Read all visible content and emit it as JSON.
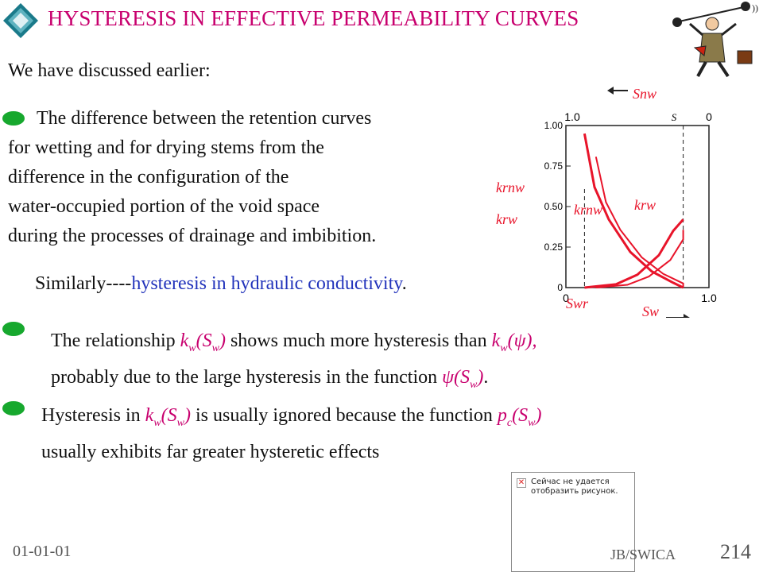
{
  "slide": {
    "title": "HYSTERESIS IN EFFECTIVE PERMEABILITY CURVES",
    "intro": "We have discussed earlier:",
    "para1": {
      "lines": [
        "The difference between the retention curves",
        "for wetting and for drying stems from the",
        "difference in the configuration of the",
        "water-occupied portion of the void space",
        "during the processes of drainage and imbibition."
      ]
    },
    "similar": {
      "prefix": "Similarly----",
      "blue": "hysteresis in hydraulic conductivity",
      "suffix": "."
    },
    "relationship": {
      "t1": "The relationship ",
      "k": "k",
      "w": "w",
      "s": "(S",
      "sw": "w",
      "close": ")",
      "t2": " shows much more hysteresis than ",
      "psi": "(ψ),",
      "t3": "probably due to the large hysteresis in the function ",
      "psi2": "ψ(S",
      "end": ").",
      "t4": "."
    },
    "hysteresis_note": {
      "t1": "Hysteresis in ",
      "t2": " is usually ignored because the function ",
      "p": "p",
      "c": "c",
      "t3": "usually exhibits far greater hysteretic effects"
    },
    "footer": {
      "date": "01-01-01",
      "org": "JB/SWICA",
      "page": "214"
    },
    "broken_image": {
      "line1": "Сейчас не удается",
      "line2": "отобразить рисунок."
    }
  },
  "chart_data": {
    "type": "line",
    "title": "",
    "xlabel": "S",
    "top_axis_label": "S",
    "y_ticks": [
      "1.00",
      "0.75",
      "0.50",
      "0.25",
      "0"
    ],
    "x_ticks_bottom": [
      "0",
      "1.0"
    ],
    "x_ticks_top": [
      "1.0",
      "0"
    ],
    "top_marker": "S",
    "annotations": [
      "krnw",
      "krw",
      "Swr",
      "Sw",
      "Snw"
    ],
    "series": [
      {
        "name": "krnw",
        "x": [
          0.13,
          0.2,
          0.3,
          0.45,
          0.6,
          0.75,
          0.82
        ],
        "y": [
          0.95,
          0.62,
          0.42,
          0.22,
          0.1,
          0.03,
          0.0
        ]
      },
      {
        "name": "krw",
        "x": [
          0.13,
          0.35,
          0.5,
          0.65,
          0.75,
          0.82
        ],
        "y": [
          0.0,
          0.02,
          0.08,
          0.2,
          0.35,
          0.42
        ]
      }
    ],
    "ylim": [
      0,
      1.0
    ],
    "xlim": [
      0,
      1.0
    ],
    "accent": "#e8142a"
  }
}
